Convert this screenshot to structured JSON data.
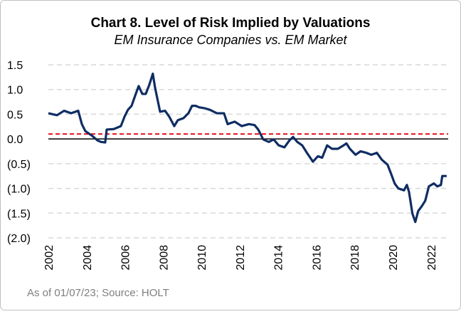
{
  "chart_data": {
    "type": "line",
    "title": "Chart 8. Level of Risk Implied by Valuations",
    "subtitle": "EM Insurance Companies vs. EM Market",
    "footnote": "As of 01/07/23; Source:  HOLT",
    "x": [
      2002.0,
      2002.45,
      2002.82,
      2003.19,
      2003.56,
      2003.75,
      2003.93,
      2004.3,
      2004.57,
      2004.75,
      2004.97,
      2005.05,
      2005.42,
      2005.79,
      2005.98,
      2006.16,
      2006.35,
      2006.54,
      2006.72,
      2006.91,
      2007.09,
      2007.28,
      2007.46,
      2007.58,
      2007.84,
      2008.1,
      2008.32,
      2008.58,
      2008.77,
      2009.06,
      2009.32,
      2009.51,
      2009.7,
      2009.88,
      2010.18,
      2010.44,
      2010.81,
      2011.18,
      2011.37,
      2011.74,
      2012.11,
      2012.48,
      2012.78,
      2012.97,
      2013.23,
      2013.52,
      2013.78,
      2014.04,
      2014.34,
      2014.6,
      2014.79,
      2015.01,
      2015.27,
      2015.53,
      2015.83,
      2016.09,
      2016.31,
      2016.57,
      2016.83,
      2017.13,
      2017.39,
      2017.58,
      2017.76,
      2018.06,
      2018.32,
      2018.62,
      2018.88,
      2019.17,
      2019.43,
      2019.73,
      2019.92,
      2020.1,
      2020.29,
      2020.59,
      2020.74,
      2020.85,
      2021.03,
      2021.18,
      2021.33,
      2021.52,
      2021.7,
      2021.89,
      2022.15,
      2022.33,
      2022.52,
      2022.59,
      2022.82
    ],
    "series": [
      {
        "color": "#0f2d64",
        "values": [
          0.52,
          0.48,
          0.57,
          0.52,
          0.57,
          0.3,
          0.16,
          0.06,
          -0.03,
          -0.06,
          -0.07,
          0.19,
          0.2,
          0.26,
          0.45,
          0.59,
          0.67,
          0.88,
          1.07,
          0.91,
          0.91,
          1.1,
          1.32,
          1.03,
          0.55,
          0.57,
          0.45,
          0.26,
          0.38,
          0.42,
          0.52,
          0.67,
          0.67,
          0.64,
          0.62,
          0.59,
          0.52,
          0.52,
          0.3,
          0.35,
          0.26,
          0.3,
          0.28,
          0.19,
          -0.01,
          -0.06,
          -0.01,
          -0.13,
          -0.17,
          -0.03,
          0.04,
          -0.06,
          -0.13,
          -0.29,
          -0.46,
          -0.35,
          -0.38,
          -0.13,
          -0.2,
          -0.2,
          -0.14,
          -0.09,
          -0.2,
          -0.32,
          -0.25,
          -0.28,
          -0.32,
          -0.28,
          -0.42,
          -0.52,
          -0.71,
          -0.9,
          -1.0,
          -1.04,
          -0.93,
          -1.07,
          -1.51,
          -1.68,
          -1.46,
          -1.36,
          -1.25,
          -0.96,
          -0.9,
          -0.96,
          -0.93,
          -0.75,
          -0.75
        ]
      }
    ],
    "reference_line": {
      "value": 0.1,
      "color": "#e8000b"
    },
    "xlim": [
      2002,
      2022.9
    ],
    "xticks": [
      2002,
      2004,
      2006,
      2008,
      2010,
      2012,
      2014,
      2016,
      2018,
      2020,
      2022
    ],
    "ylim": [
      -2,
      1.5
    ],
    "yticks": [
      1.5,
      {
        "value": 1,
        "label": "1.0"
      },
      0.5,
      {
        "value": 0,
        "label": "0.0"
      },
      {
        "value": -0.5,
        "label": "(0.5)"
      },
      {
        "value": -1,
        "label": "(1.0)"
      },
      {
        "value": -1.5,
        "label": "(1.5)"
      },
      {
        "value": -2,
        "label": "(2.0)"
      }
    ],
    "grid": true
  }
}
